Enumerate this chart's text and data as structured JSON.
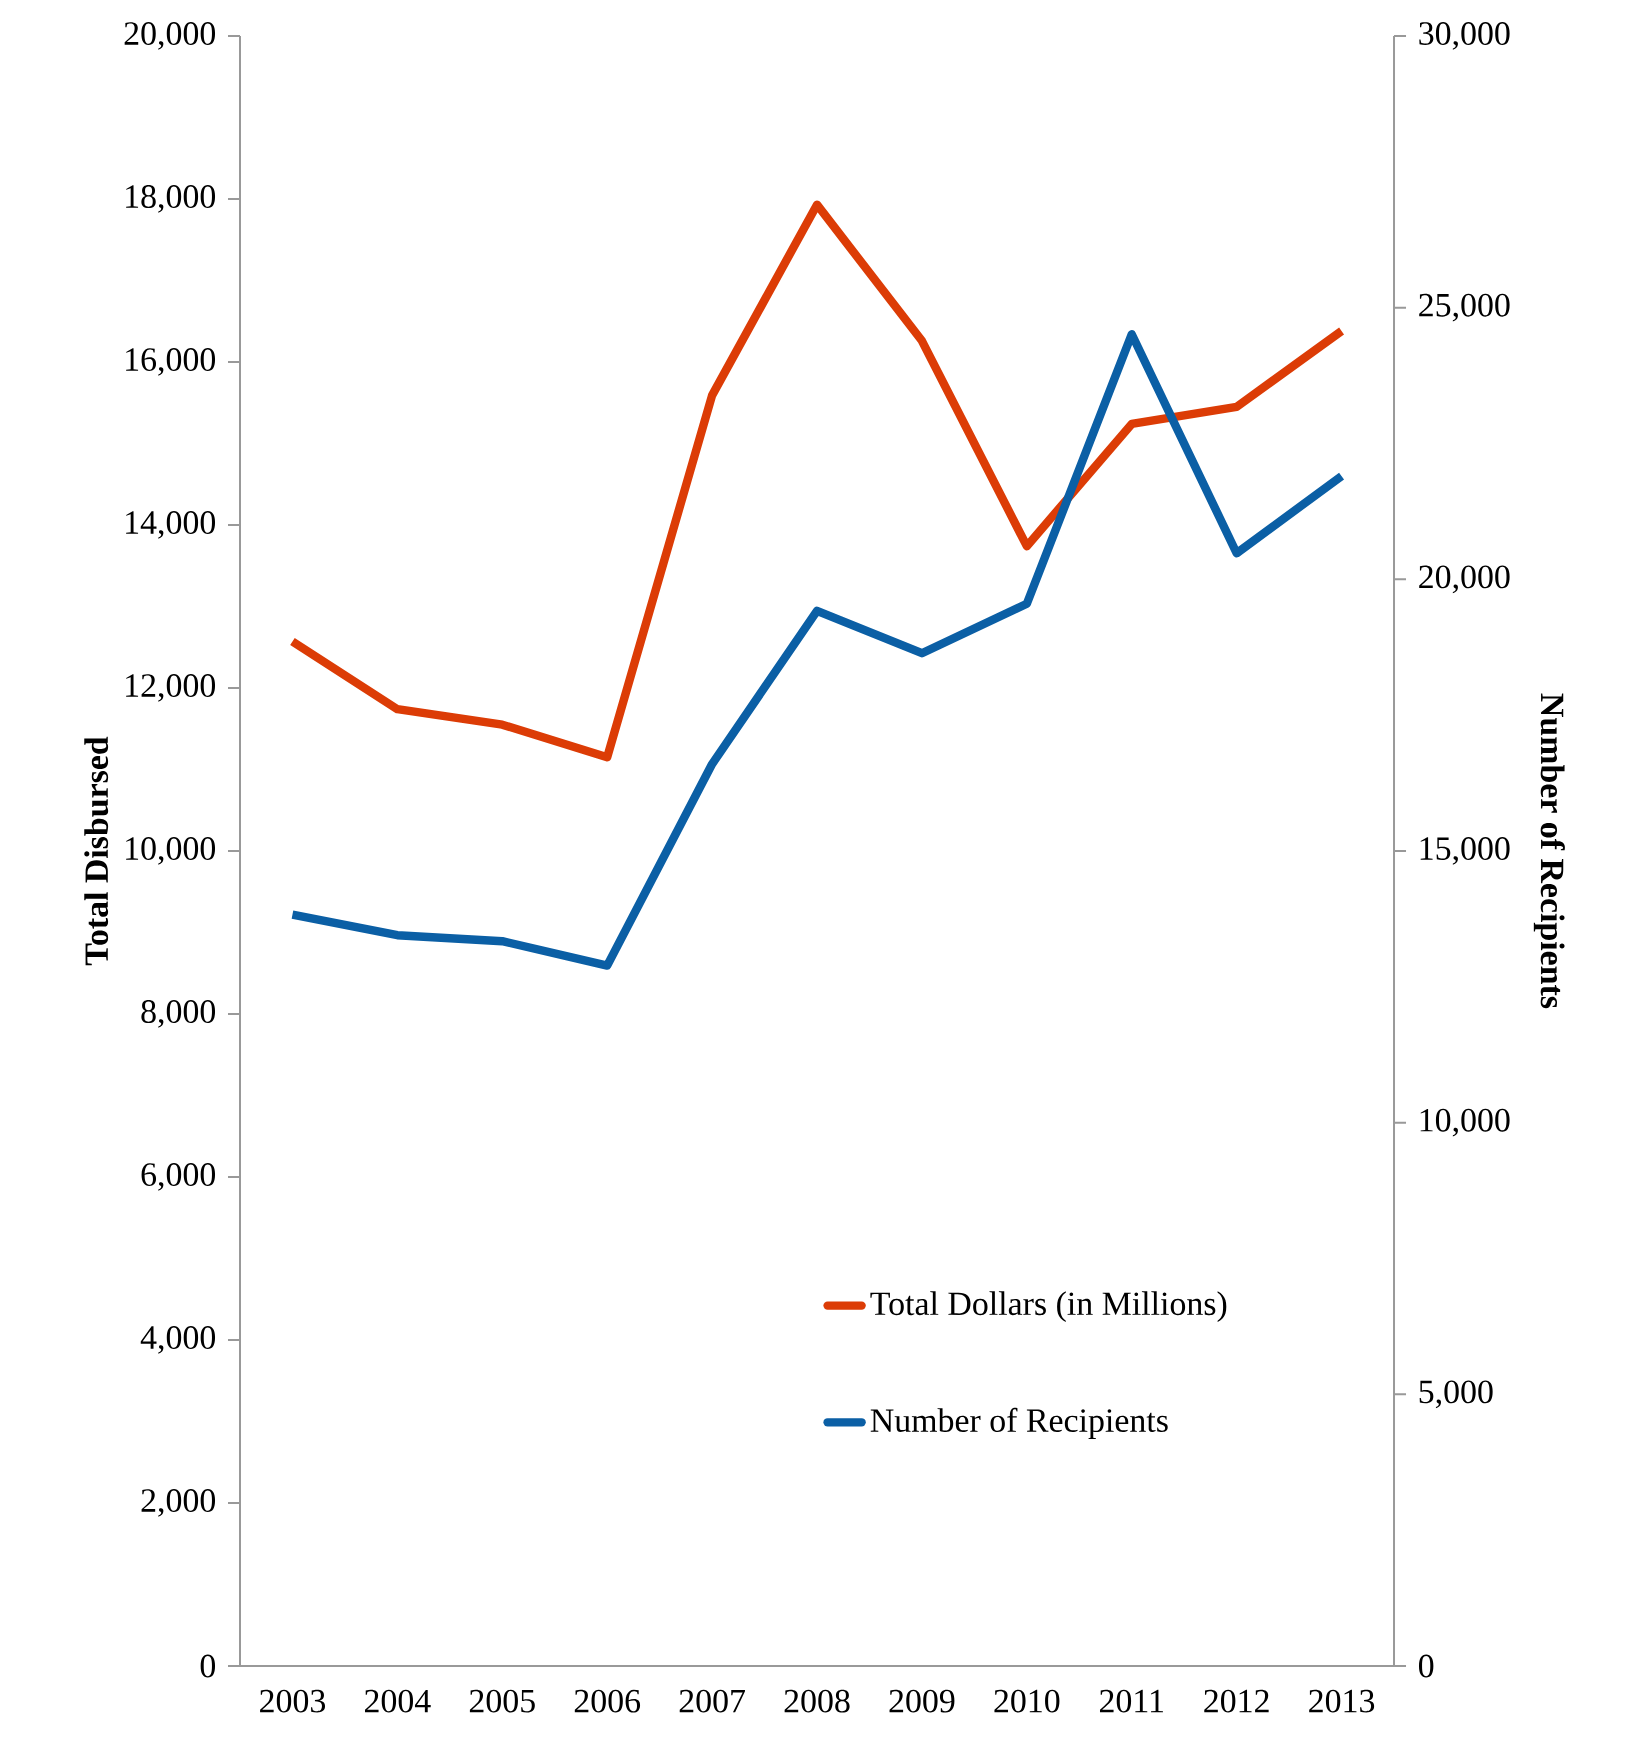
{
  "chart_data": {
    "type": "line",
    "categories": [
      "2003",
      "2004",
      "2005",
      "2006",
      "2007",
      "2008",
      "2009",
      "2010",
      "2011",
      "2012",
      "2013"
    ],
    "series": [
      {
        "name": "Total Dollars (in Millions)",
        "color": "#dc3c06",
        "values": [
          12570,
          11740,
          11550,
          11150,
          15590,
          17930,
          16260,
          13740,
          15240,
          15450,
          16380
        ]
      },
      {
        "name": "Number of Recipients",
        "color": "#0b5fa5",
        "axis": "y2",
        "values": [
          13830,
          13450,
          13340,
          12890,
          16600,
          19420,
          18640,
          19550,
          24510,
          20480,
          21900
        ]
      }
    ],
    "ylabel": "Total Disbursed",
    "y2label": "Number of Recipients",
    "ylim": [
      0,
      20000
    ],
    "yticks": [
      0,
      {
        "value": 2000,
        "label": "2,000"
      },
      {
        "value": 4000,
        "label": "4,000"
      },
      {
        "value": 6000,
        "label": "6,000"
      },
      {
        "value": 8000,
        "label": "8,000"
      },
      {
        "value": 10000,
        "label": "10,000"
      },
      {
        "value": 12000,
        "label": "12,000"
      },
      {
        "value": 14000,
        "label": "14,000"
      },
      {
        "value": 16000,
        "label": "16,000"
      },
      {
        "value": 18000,
        "label": "18,000"
      },
      {
        "value": 20000,
        "label": "20,000"
      }
    ],
    "y2lim": [
      0,
      30000
    ],
    "y2ticks": [
      0,
      {
        "value": 5000,
        "label": "5,000"
      },
      {
        "value": 10000,
        "label": "10,000"
      },
      {
        "value": 15000,
        "label": "15,000"
      },
      {
        "value": 20000,
        "label": "20,000"
      },
      {
        "value": 25000,
        "label": "25,000"
      },
      {
        "value": 30000,
        "label": "30,000"
      }
    ],
    "legend": "bottom right",
    "marker": "none",
    "line_style": "solid"
  }
}
